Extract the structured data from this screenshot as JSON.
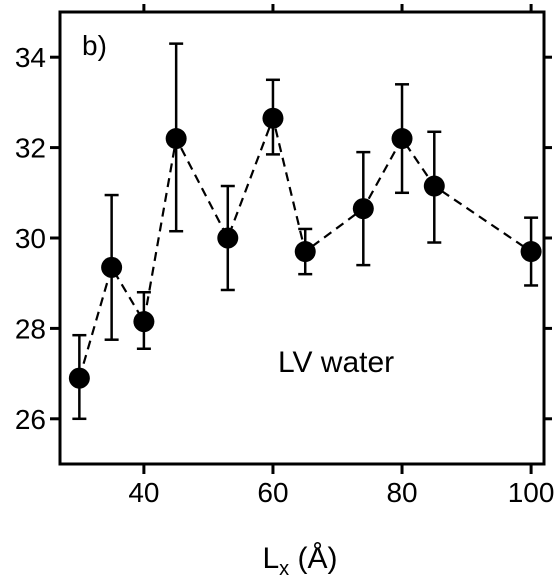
{
  "chart_data": {
    "type": "scatter",
    "title": "",
    "panel_label": "b)",
    "annotation": "LV water",
    "xlabel": {
      "main": "L",
      "sub": "x",
      "rest": " (Å)"
    },
    "ylabel": "",
    "xlim": [
      27,
      102
    ],
    "ylim": [
      25,
      35
    ],
    "xticks": [
      40,
      60,
      80,
      100
    ],
    "yticks": [
      26,
      28,
      30,
      32,
      34
    ],
    "grid": false,
    "connector": "dashed",
    "marker_color": "#000000",
    "series": [
      {
        "name": "",
        "x": [
          30,
          35,
          40,
          45,
          53,
          60,
          65,
          74,
          80,
          85,
          100
        ],
        "y": [
          26.9,
          29.35,
          28.15,
          32.2,
          30.0,
          32.65,
          29.7,
          30.65,
          32.2,
          31.15,
          29.7
        ],
        "err_low": [
          26.0,
          27.75,
          27.55,
          30.15,
          28.85,
          31.85,
          29.2,
          29.4,
          31.0,
          29.9,
          28.95
        ],
        "err_high": [
          27.85,
          30.95,
          28.8,
          34.3,
          31.15,
          33.5,
          30.2,
          31.9,
          33.4,
          32.35,
          30.45
        ]
      }
    ]
  }
}
